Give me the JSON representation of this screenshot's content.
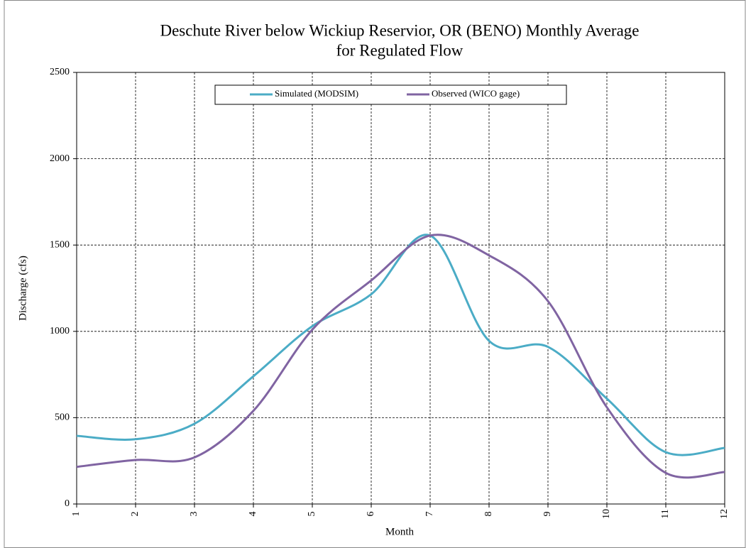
{
  "chart_data": {
    "type": "line",
    "title": [
      "Deschute River below Wickiup Reservior, OR (BENO) Monthly Average",
      "for Regulated Flow"
    ],
    "x_label": "Month",
    "y_label": "Discharge (cfs)",
    "x": [
      1,
      2,
      3,
      4,
      5,
      6,
      7,
      8,
      9,
      10,
      11,
      12
    ],
    "series": [
      {
        "name": "Simulated (MODSIM)",
        "color": "#4bacc6",
        "values": [
          395,
          375,
          465,
          740,
          1030,
          1215,
          1555,
          945,
          910,
          610,
          300,
          325
        ]
      },
      {
        "name": "Observed (WICO gage)",
        "color": "#8064a2",
        "values": [
          215,
          255,
          270,
          540,
          1010,
          1295,
          1555,
          1440,
          1175,
          560,
          180,
          185
        ]
      }
    ],
    "xlim": [
      1,
      12
    ],
    "xticks": [
      1,
      2,
      3,
      4,
      5,
      6,
      7,
      8,
      9,
      10,
      11,
      12
    ],
    "ylim": [
      0,
      2500
    ],
    "yticks": [
      0,
      500,
      1000,
      1500,
      2000,
      2500
    ],
    "grid": true,
    "smooth": true,
    "legend": "top"
  }
}
